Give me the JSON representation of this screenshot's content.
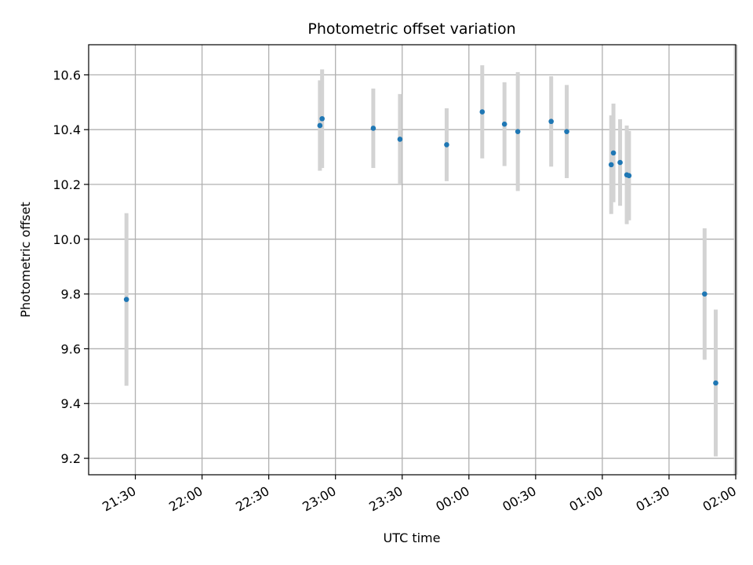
{
  "chart_data": {
    "type": "scatter",
    "title": "Photometric offset variation",
    "xlabel": "UTC time",
    "ylabel": "Photometric offset",
    "xlim": [
      "2000-01-01T21:09",
      "2000-01-02T02:00"
    ],
    "ylim": [
      9.14,
      10.71
    ],
    "x_ticks": [
      {
        "t": "2000-01-01T21:30",
        "label": "21:30"
      },
      {
        "t": "2000-01-01T22:00",
        "label": "22:00"
      },
      {
        "t": "2000-01-01T22:30",
        "label": "22:30"
      },
      {
        "t": "2000-01-01T23:00",
        "label": "23:00"
      },
      {
        "t": "2000-01-01T23:30",
        "label": "23:30"
      },
      {
        "t": "2000-01-02T00:00",
        "label": "00:00"
      },
      {
        "t": "2000-01-02T00:30",
        "label": "00:30"
      },
      {
        "t": "2000-01-02T01:00",
        "label": "01:00"
      },
      {
        "t": "2000-01-02T01:30",
        "label": "01:30"
      },
      {
        "t": "2000-01-02T02:00",
        "label": "02:00"
      }
    ],
    "y_ticks": [
      9.2,
      9.4,
      9.6,
      9.8,
      10.0,
      10.2,
      10.4,
      10.6
    ],
    "grid": true,
    "colors": {
      "point": "#1f77b4",
      "errorbar": "#d3d3d3",
      "grid": "#b0b0b0"
    },
    "points": [
      {
        "t": "2000-01-01T21:26",
        "y": 9.78,
        "err": 0.315
      },
      {
        "t": "2000-01-01T22:53",
        "y": 10.415,
        "err": 0.165
      },
      {
        "t": "2000-01-01T22:54",
        "y": 10.44,
        "err": 0.18
      },
      {
        "t": "2000-01-01T23:17",
        "y": 10.405,
        "err": 0.145
      },
      {
        "t": "2000-01-01T23:29",
        "y": 10.365,
        "err": 0.165
      },
      {
        "t": "2000-01-01T23:50",
        "y": 10.345,
        "err": 0.133
      },
      {
        "t": "2000-01-02T00:06",
        "y": 10.465,
        "err": 0.17
      },
      {
        "t": "2000-01-02T00:16",
        "y": 10.42,
        "err": 0.153
      },
      {
        "t": "2000-01-02T00:22",
        "y": 10.393,
        "err": 0.217
      },
      {
        "t": "2000-01-02T00:37",
        "y": 10.43,
        "err": 0.165
      },
      {
        "t": "2000-01-02T00:44",
        "y": 10.393,
        "err": 0.17
      },
      {
        "t": "2000-01-02T01:04",
        "y": 10.272,
        "err": 0.18
      },
      {
        "t": "2000-01-02T01:05",
        "y": 10.315,
        "err": 0.18
      },
      {
        "t": "2000-01-02T01:08",
        "y": 10.28,
        "err": 0.158
      },
      {
        "t": "2000-01-02T01:11",
        "y": 10.235,
        "err": 0.18
      },
      {
        "t": "2000-01-02T01:12",
        "y": 10.232,
        "err": 0.163
      },
      {
        "t": "2000-01-02T01:46",
        "y": 9.8,
        "err": 0.24
      },
      {
        "t": "2000-01-02T01:51",
        "y": 9.475,
        "err": 0.268
      },
      {
        "t": "2000-01-02T02:00",
        "y": null,
        "err": null
      }
    ]
  }
}
